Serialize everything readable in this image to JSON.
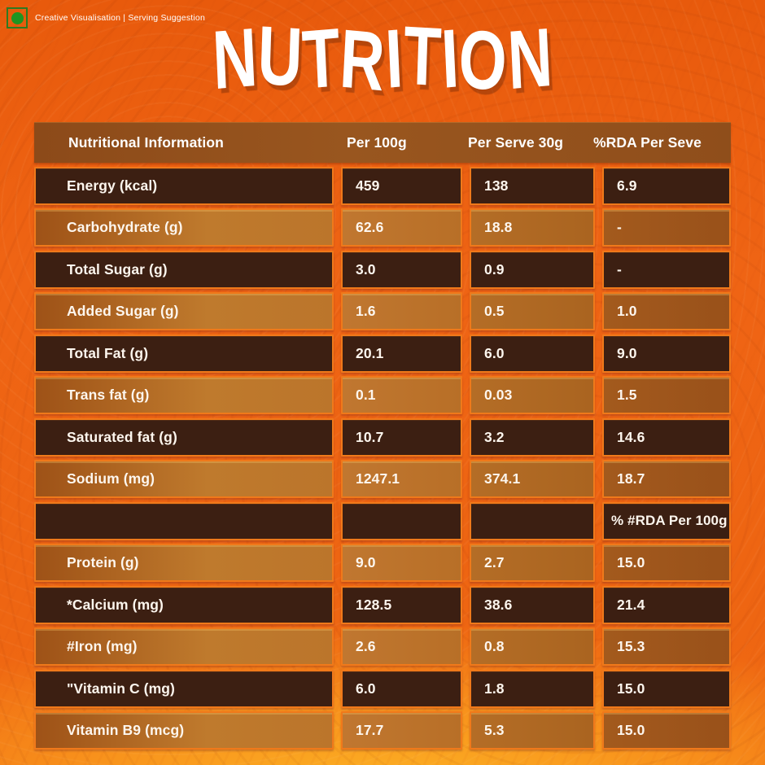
{
  "disclaimer": {
    "text": "Creative Visualisation | Serving Suggestion",
    "veg_icon": "veg-mark-icon"
  },
  "title": "NUTRITION",
  "table": {
    "headers": [
      "Nutritional Information",
      "Per 100g",
      "Per Serve 30g",
      "%RDA Per Seve"
    ],
    "rows": [
      {
        "label": "Energy (kcal)",
        "per_100g": "459",
        "per_serve_30g": "138",
        "rda": "6.9",
        "variant": "dark"
      },
      {
        "label": "Carbohydrate (g)",
        "per_100g": "62.6",
        "per_serve_30g": "18.8",
        "rda": "-",
        "variant": "light"
      },
      {
        "label": "Total Sugar (g)",
        "per_100g": "3.0",
        "per_serve_30g": "0.9",
        "rda": "-",
        "variant": "dark"
      },
      {
        "label": "Added Sugar (g)",
        "per_100g": "1.6",
        "per_serve_30g": "0.5",
        "rda": "1.0",
        "variant": "light"
      },
      {
        "label": "Total Fat (g)",
        "per_100g": "20.1",
        "per_serve_30g": "6.0",
        "rda": "9.0",
        "variant": "dark"
      },
      {
        "label": "Trans fat (g)",
        "per_100g": "0.1",
        "per_serve_30g": "0.03",
        "rda": "1.5",
        "variant": "light"
      },
      {
        "label": "Saturated fat (g)",
        "per_100g": "10.7",
        "per_serve_30g": "3.2",
        "rda": "14.6",
        "variant": "dark"
      },
      {
        "label": "Sodium (mg)",
        "per_100g": "1247.1",
        "per_serve_30g": "374.1",
        "rda": "18.7",
        "variant": "light"
      },
      {
        "label": "",
        "per_100g": "",
        "per_serve_30g": "",
        "rda": "% #RDA Per 100g",
        "variant": "dark",
        "note_row": true
      },
      {
        "label": "Protein (g)",
        "per_100g": "9.0",
        "per_serve_30g": "2.7",
        "rda": "15.0",
        "variant": "light"
      },
      {
        "label": "*Calcium (mg)",
        "per_100g": "128.5",
        "per_serve_30g": "38.6",
        "rda": "21.4",
        "variant": "dark"
      },
      {
        "label": "#Iron (mg)",
        "per_100g": "2.6",
        "per_serve_30g": "0.8",
        "rda": "15.3",
        "variant": "light"
      },
      {
        "label": "\"Vitamin C (mg)",
        "per_100g": "6.0",
        "per_serve_30g": "1.8",
        "rda": "15.0",
        "variant": "dark"
      },
      {
        "label": "Vitamin B9 (mcg)",
        "per_100g": "17.7",
        "per_serve_30g": "5.3",
        "rda": "15.0",
        "variant": "light"
      }
    ]
  },
  "colors": {
    "background_orange": "#ef6414",
    "bottom_glow": "#fdb525",
    "header_brown": "#8f4e1b",
    "row_dark": "#3c1f12",
    "row_light": "#b86f27",
    "cell_border": "#f0791a",
    "veg_green": "#1f9522",
    "text": "#ffffff"
  }
}
